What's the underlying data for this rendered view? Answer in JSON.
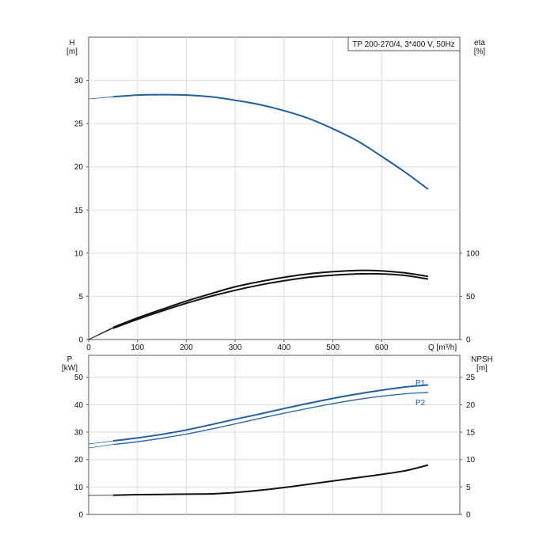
{
  "chart_data": [
    {
      "type": "line",
      "title": "TP 200-270/4, 3*400 V, 50Hz",
      "xlabel": "Q [m³/h]",
      "x_ticks": [
        "0",
        "100",
        "200",
        "300",
        "400",
        "500",
        "600"
      ],
      "xlim": [
        0,
        760
      ],
      "left_axis": {
        "label_line1": "H",
        "label_line2": "[m]",
        "ylim": [
          0,
          35
        ],
        "ticks": [
          "0",
          "5",
          "10",
          "15",
          "20",
          "25",
          "30"
        ]
      },
      "right_axis": {
        "label_line1": "eta",
        "label_line2": "[%]",
        "ylim": [
          0,
          350
        ],
        "ticks": [
          "0",
          "50",
          "100"
        ]
      },
      "grid": true,
      "series": [
        {
          "axis": "left",
          "color": "#1f5fa6",
          "x": [
            50,
            100,
            150,
            200,
            250,
            300,
            350,
            400,
            450,
            500,
            550,
            600,
            650,
            695
          ],
          "y": [
            28.1,
            28.3,
            28.35,
            28.3,
            28.1,
            27.7,
            27.2,
            26.5,
            25.6,
            24.4,
            23.0,
            21.2,
            19.3,
            17.4
          ]
        },
        {
          "axis": "right",
          "color": "#111111",
          "x": [
            50,
            100,
            150,
            200,
            250,
            300,
            350,
            400,
            450,
            500,
            550,
            600,
            650,
            695
          ],
          "y": [
            14,
            25,
            35,
            44.5,
            53,
            61,
            67,
            72,
            76,
            78.5,
            80,
            79.5,
            77,
            73
          ]
        },
        {
          "axis": "right",
          "color": "#111111",
          "x": [
            50,
            100,
            150,
            200,
            250,
            300,
            350,
            400,
            450,
            500,
            550,
            600,
            650,
            695
          ],
          "y": [
            13,
            23.5,
            33,
            42,
            50,
            57,
            63,
            68,
            72,
            74.5,
            76,
            76,
            74,
            70
          ]
        }
      ]
    },
    {
      "type": "line",
      "x_ticks": [
        "0",
        "100",
        "200",
        "300",
        "400",
        "500",
        "600"
      ],
      "xlim": [
        0,
        760
      ],
      "left_axis": {
        "label_line1": "P",
        "label_line2": "[kW]",
        "ylim": [
          0,
          58
        ],
        "ticks": [
          "0",
          "10",
          "20",
          "30",
          "40",
          "50"
        ]
      },
      "right_axis": {
        "label_line1": "NPSH",
        "label_line2": "[m]",
        "ylim": [
          0,
          29
        ],
        "ticks": [
          "0",
          "5",
          "10",
          "15",
          "20",
          "25"
        ]
      },
      "grid": true,
      "series": [
        {
          "name": "P1",
          "axis": "left",
          "color": "#1f5fa6",
          "x": [
            50,
            100,
            150,
            200,
            250,
            300,
            350,
            400,
            450,
            500,
            550,
            600,
            650,
            695
          ],
          "y": [
            26.8,
            27.9,
            29.2,
            30.8,
            32.7,
            34.7,
            36.6,
            38.6,
            40.5,
            42.3,
            43.9,
            45.3,
            46.5,
            47.2
          ]
        },
        {
          "name": "P2",
          "axis": "left",
          "color": "#1f5fa6",
          "x": [
            50,
            100,
            150,
            200,
            250,
            300,
            350,
            400,
            450,
            500,
            550,
            600,
            650,
            695
          ],
          "y": [
            25.5,
            26.5,
            27.8,
            29.3,
            31.1,
            33.0,
            35.0,
            36.9,
            38.7,
            40.4,
            41.9,
            43.1,
            44.0,
            44.5
          ]
        },
        {
          "axis": "right",
          "color": "#111111",
          "x": [
            50,
            100,
            150,
            200,
            250,
            300,
            350,
            400,
            450,
            500,
            550,
            600,
            650,
            695
          ],
          "y": [
            3.5,
            3.6,
            3.65,
            3.7,
            3.75,
            4.0,
            4.4,
            4.9,
            5.5,
            6.1,
            6.7,
            7.3,
            8.0,
            9.0
          ]
        }
      ]
    }
  ]
}
